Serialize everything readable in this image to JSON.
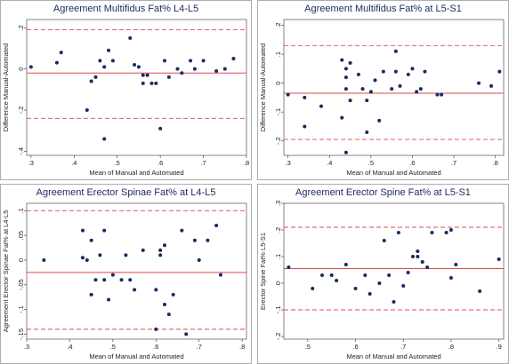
{
  "chart_data": [
    {
      "type": "scatter",
      "title": "Agreement Multifidus Fat% L4-L5",
      "xlabel": "Mean of Manual and Automated",
      "ylabel": "Difference Manual-Automated",
      "x": [
        0.3,
        0.36,
        0.37,
        0.43,
        0.44,
        0.45,
        0.46,
        0.47,
        0.47,
        0.48,
        0.49,
        0.53,
        0.54,
        0.55,
        0.56,
        0.56,
        0.57,
        0.58,
        0.59,
        0.6,
        0.61,
        0.62,
        0.64,
        0.65,
        0.67,
        0.68,
        0.7,
        0.73,
        0.75,
        0.77
      ],
      "values": [
        0.01,
        0.03,
        0.08,
        -0.2,
        -0.06,
        -0.04,
        0.04,
        0.01,
        -0.34,
        0.09,
        0.04,
        0.15,
        0.02,
        0.01,
        -0.03,
        -0.07,
        -0.03,
        -0.07,
        -0.07,
        -0.29,
        0.04,
        -0.04,
        0.0,
        -0.02,
        0.04,
        0.0,
        0.04,
        -0.01,
        0.0,
        0.05
      ],
      "color": "#1b2a5e",
      "line_color": "#e0474c",
      "mean": -0.02,
      "limits": [
        -0.24,
        0.19
      ],
      "xlim": [
        0.29,
        0.8
      ],
      "ylim": [
        -0.42,
        0.24
      ],
      "xticks": [
        {
          "value": 0.3,
          "label": ".3"
        },
        {
          "value": 0.4,
          "label": ".4"
        },
        {
          "value": 0.5,
          "label": ".5"
        },
        {
          "value": 0.6,
          "label": ".6"
        },
        {
          "value": 0.7,
          "label": ".7"
        },
        {
          "value": 0.8,
          "label": ".8"
        }
      ],
      "yticks": [
        {
          "value": -0.4,
          "label": "-.4"
        },
        {
          "value": -0.2,
          "label": "-.2"
        },
        0,
        {
          "value": 0.2,
          "label": ".2"
        }
      ]
    },
    {
      "type": "scatter",
      "title": "Agreement Multifidus Fat% at L5-S1",
      "xlabel": "Mean of Manual and Automated",
      "ylabel": "Difference Manual-Automated",
      "x": [
        0.3,
        0.34,
        0.34,
        0.38,
        0.43,
        0.43,
        0.44,
        0.44,
        0.44,
        0.44,
        0.45,
        0.45,
        0.47,
        0.48,
        0.49,
        0.49,
        0.5,
        0.51,
        0.52,
        0.53,
        0.55,
        0.56,
        0.56,
        0.57,
        0.59,
        0.6,
        0.61,
        0.62,
        0.63,
        0.66,
        0.67,
        0.76,
        0.79,
        0.81
      ],
      "values": [
        -0.04,
        -0.15,
        -0.05,
        -0.08,
        0.08,
        -0.12,
        0.05,
        0.02,
        -0.02,
        -0.24,
        -0.06,
        0.07,
        0.03,
        -0.02,
        -0.06,
        -0.17,
        -0.03,
        0.01,
        -0.13,
        0.04,
        -0.02,
        0.11,
        0.04,
        -0.01,
        0.03,
        0.05,
        -0.03,
        -0.02,
        0.04,
        -0.04,
        -0.04,
        0.0,
        -0.01,
        0.04
      ],
      "color": "#1b2a5e",
      "line_color": "#e0474c",
      "mean": -0.035,
      "limits": [
        -0.195,
        0.13
      ],
      "xlim": [
        0.29,
        0.82
      ],
      "ylim": [
        -0.25,
        0.22
      ],
      "xticks": [
        {
          "value": 0.3,
          "label": ".3"
        },
        {
          "value": 0.4,
          "label": ".4"
        },
        {
          "value": 0.5,
          "label": ".5"
        },
        {
          "value": 0.6,
          "label": ".6"
        },
        {
          "value": 0.7,
          "label": ".7"
        },
        {
          "value": 0.8,
          "label": ".8"
        }
      ],
      "yticks": [
        {
          "value": -0.2,
          "label": "-.2"
        },
        {
          "value": -0.1,
          "label": "-.1"
        },
        0,
        {
          "value": 0.1,
          "label": ".1"
        },
        {
          "value": 0.2,
          "label": ".2"
        }
      ]
    },
    {
      "type": "scatter",
      "title": "Agreement Erector Spinae Fat% at L4-L5",
      "xlabel": "Mean of Manual and Automated",
      "ylabel": "Agreement Erector Spinae Fat% at L4-L5",
      "x": [
        0.34,
        0.43,
        0.43,
        0.44,
        0.45,
        0.45,
        0.46,
        0.47,
        0.48,
        0.48,
        0.49,
        0.5,
        0.52,
        0.53,
        0.54,
        0.55,
        0.57,
        0.6,
        0.6,
        0.61,
        0.61,
        0.62,
        0.62,
        0.63,
        0.64,
        0.66,
        0.67,
        0.69,
        0.7,
        0.72,
        0.74,
        0.75
      ],
      "values": [
        0.0,
        0.06,
        0.005,
        0.0,
        -0.07,
        0.04,
        -0.04,
        0.01,
        0.06,
        -0.04,
        -0.08,
        -0.03,
        -0.04,
        0.01,
        -0.04,
        -0.06,
        0.02,
        -0.14,
        -0.06,
        0.02,
        0.01,
        0.03,
        -0.09,
        -0.11,
        -0.07,
        0.06,
        -0.15,
        0.04,
        0.0,
        0.04,
        0.07,
        -0.03
      ],
      "color": "#1b2a5e",
      "line_color": "#e0474c",
      "mean": -0.025,
      "limits": [
        -0.14,
        0.1
      ],
      "xlim": [
        0.3,
        0.81
      ],
      "ylim": [
        -0.16,
        0.115
      ],
      "xticks": [
        {
          "value": 0.3,
          "label": ".3"
        },
        {
          "value": 0.4,
          "label": ".4"
        },
        {
          "value": 0.5,
          "label": ".5"
        },
        {
          "value": 0.6,
          "label": ".6"
        },
        {
          "value": 0.7,
          "label": ".7"
        },
        {
          "value": 0.8,
          "label": ".8"
        }
      ],
      "yticks": [
        {
          "value": -0.15,
          "label": "-.15"
        },
        {
          "value": -0.1,
          "label": "-.1"
        },
        {
          "value": -0.05,
          "label": "-.05"
        },
        0,
        {
          "value": 0.05,
          "label": ".05"
        },
        {
          "value": 0.1,
          "label": ".1"
        }
      ]
    },
    {
      "type": "scatter",
      "title": "Agreement Erector Spine Fat% at L5-S1",
      "xlabel": "Mean of Manual and Automated",
      "ylabel": "Erector Spine Fat% L5-S1",
      "x": [
        0.46,
        0.51,
        0.53,
        0.55,
        0.56,
        0.58,
        0.6,
        0.62,
        0.63,
        0.65,
        0.66,
        0.67,
        0.68,
        0.69,
        0.7,
        0.71,
        0.72,
        0.73,
        0.73,
        0.74,
        0.75,
        0.76,
        0.79,
        0.8,
        0.8,
        0.81,
        0.86,
        0.9
      ],
      "values": [
        0.06,
        -0.02,
        0.03,
        0.03,
        0.01,
        0.07,
        -0.02,
        0.03,
        -0.04,
        0.0,
        0.16,
        0.03,
        -0.07,
        0.19,
        -0.01,
        0.04,
        0.1,
        0.12,
        0.1,
        0.08,
        0.06,
        0.19,
        0.19,
        0.2,
        0.02,
        0.07,
        -0.03,
        0.09
      ],
      "color": "#1b2a5e",
      "line_color": "#e0474c",
      "mean": 0.055,
      "limits": [
        -0.1,
        0.21
      ],
      "xlim": [
        0.45,
        0.91
      ],
      "ylim": [
        -0.21,
        0.3
      ],
      "xticks": [
        {
          "value": 0.5,
          "label": ".5"
        },
        {
          "value": 0.6,
          "label": ".6"
        },
        {
          "value": 0.7,
          "label": ".7"
        },
        {
          "value": 0.8,
          "label": ".8"
        },
        {
          "value": 0.9,
          "label": ".9"
        }
      ],
      "yticks": [
        {
          "value": -0.2,
          "label": "-.2"
        },
        {
          "value": -0.1,
          "label": "-.1"
        },
        0,
        {
          "value": 0.1,
          "label": ".1"
        },
        {
          "value": 0.2,
          "label": ".2"
        },
        {
          "value": 0.3,
          "label": ".3"
        }
      ]
    }
  ]
}
